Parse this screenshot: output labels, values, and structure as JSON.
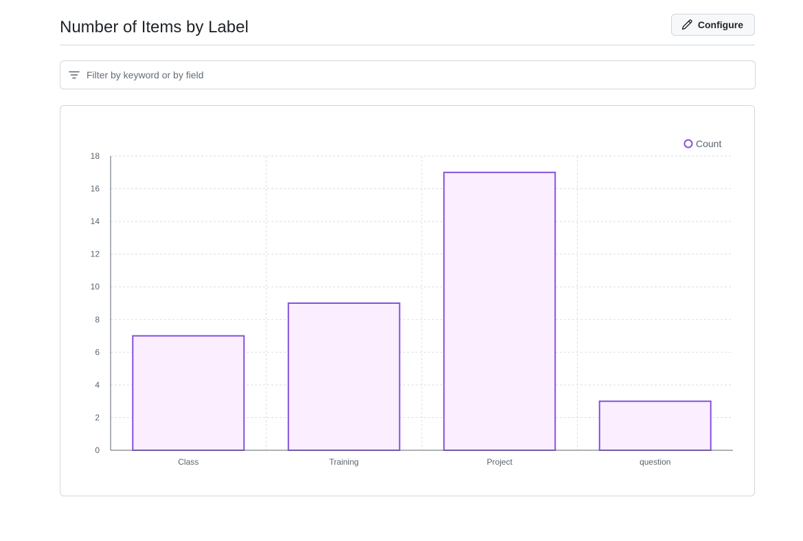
{
  "header": {
    "title": "Number of Items by Label",
    "configure_label": "Configure",
    "configure_icon": "pencil-icon"
  },
  "filter": {
    "placeholder": "Filter by keyword or by field",
    "icon": "filter-icon"
  },
  "colors": {
    "bar_fill": "#fbeefe",
    "bar_stroke": "#8250df",
    "grid": "#d8dee4",
    "axis": "#59636e"
  },
  "chart_data": {
    "type": "bar",
    "categories": [
      "Class",
      "Training",
      "Project",
      "question"
    ],
    "series": [
      {
        "name": "Count",
        "values": [
          7,
          9,
          17,
          3
        ]
      }
    ],
    "ylim": [
      0,
      18
    ],
    "yticks": [
      0,
      2,
      4,
      6,
      8,
      10,
      12,
      14,
      16,
      18
    ],
    "grid": true,
    "legend": "top-right"
  }
}
